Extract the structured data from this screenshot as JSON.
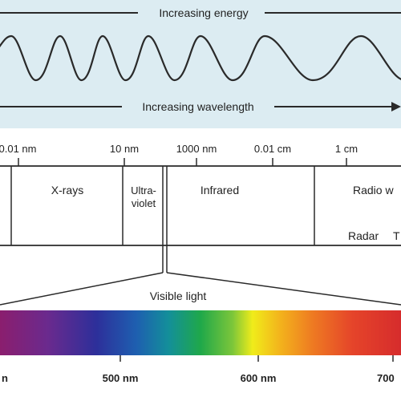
{
  "header": {
    "energy_label": "Increasing energy",
    "wavelength_label": "Increasing wavelength"
  },
  "scale": {
    "ticks": [
      {
        "label": "0.01 nm"
      },
      {
        "label": "10 nm"
      },
      {
        "label": "1000 nm"
      },
      {
        "label": "0.01 cm"
      },
      {
        "label": "1 cm"
      }
    ]
  },
  "spectrum": {
    "regions": [
      {
        "id": "x-rays",
        "label": "X-rays"
      },
      {
        "id": "ultraviolet",
        "line1": "Ultra-",
        "line2": "violet"
      },
      {
        "id": "infrared",
        "label": "Infrared"
      },
      {
        "id": "radio",
        "label": "Radio w"
      }
    ],
    "sub_labels": [
      "Radar",
      "T"
    ]
  },
  "visible": {
    "title": "Visible light",
    "ticks": [
      "n",
      "500 nm",
      "600 nm",
      "700"
    ]
  },
  "colors": {
    "background_top": "#dcecf2",
    "line": "#2a2a2a",
    "band_background": "#ffffff"
  }
}
